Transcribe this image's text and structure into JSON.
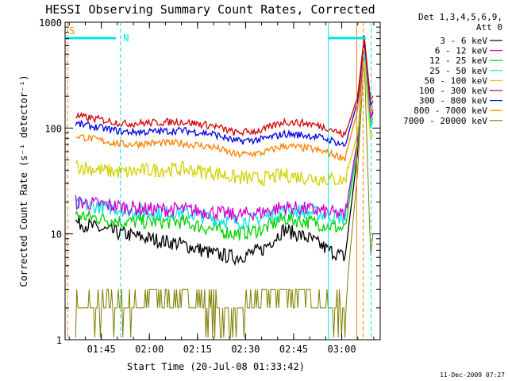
{
  "chart_data": {
    "type": "line",
    "title": "HESSI Observing Summary Count Rates, Corrected",
    "xlabel": "Start Time (20-Jul-08 01:33:42)",
    "ylabel": "Corrected Count Rate (s⁻¹ detector⁻¹)",
    "y_scale": "log",
    "ylim": [
      1,
      1000
    ],
    "xlim": [
      "01:33:42",
      "03:12:00"
    ],
    "x_ticks": [
      "01:45",
      "02:00",
      "02:15",
      "02:30",
      "02:45",
      "03:00"
    ],
    "y_ticks": [
      "1",
      "10",
      "100",
      "1000"
    ],
    "legend_header": [
      "Det 1,3,4,5,6,9,",
      "Att 0"
    ],
    "legend_position": "outside-right",
    "attenuator_markers": {
      "saa_label": "S",
      "night_label": "N"
    },
    "timestamp": "11-Dec-2009 07:27",
    "series": [
      {
        "name": "3 - 6 keV",
        "color": "#000000",
        "x": [
          "01:37",
          "01:45",
          "01:52",
          "02:00",
          "02:10",
          "02:20",
          "02:27",
          "02:35",
          "02:42",
          "02:50",
          "02:56",
          "03:01",
          "03:05",
          "03:07",
          "03:09",
          "03:10"
        ],
        "values": [
          13,
          11,
          10,
          9,
          8,
          6.5,
          6,
          7,
          11,
          9,
          7,
          6,
          60,
          800,
          120,
          150
        ]
      },
      {
        "name": "6 - 12 keV",
        "color": "#d200d2",
        "x": [
          "01:37",
          "01:45",
          "01:52",
          "02:00",
          "02:10",
          "02:20",
          "02:27",
          "02:35",
          "02:42",
          "02:50",
          "02:56",
          "03:01",
          "03:05",
          "03:07",
          "03:09",
          "03:10"
        ],
        "values": [
          20,
          19,
          18,
          17,
          17,
          16,
          15,
          16,
          18,
          17,
          16,
          15,
          80,
          750,
          120,
          160
        ]
      },
      {
        "name": "12 - 25 keV",
        "color": "#00d200",
        "x": [
          "01:37",
          "01:45",
          "01:52",
          "02:00",
          "02:10",
          "02:20",
          "02:27",
          "02:35",
          "02:42",
          "02:50",
          "02:56",
          "03:01",
          "03:05",
          "03:07",
          "03:09",
          "03:10"
        ],
        "values": [
          15,
          14,
          13,
          13,
          13,
          11,
          10,
          11,
          14,
          13,
          12,
          11,
          70,
          650,
          110,
          130
        ]
      },
      {
        "name": "25 - 50 keV",
        "color": "#00e5e5",
        "x": [
          "01:37",
          "01:45",
          "01:52",
          "02:00",
          "02:10",
          "02:20",
          "02:27",
          "02:35",
          "02:42",
          "02:50",
          "02:56",
          "03:01",
          "03:05",
          "03:07",
          "03:09",
          "03:10"
        ],
        "values": [
          19,
          18,
          17,
          16,
          16,
          14,
          13,
          14,
          17,
          16,
          15,
          14,
          75,
          600,
          100,
          120
        ]
      },
      {
        "name": "50 - 100 keV",
        "color": "#d2d200",
        "x": [
          "01:37",
          "01:45",
          "01:52",
          "02:00",
          "02:10",
          "02:20",
          "02:27",
          "02:35",
          "02:42",
          "02:50",
          "02:56",
          "03:01",
          "03:05",
          "03:07",
          "03:09",
          "03:10"
        ],
        "values": [
          44,
          40,
          38,
          40,
          41,
          38,
          34,
          33,
          36,
          34,
          33,
          32,
          90,
          450,
          80,
          90
        ]
      },
      {
        "name": "100 - 300 keV",
        "color": "#d20000",
        "x": [
          "01:37",
          "01:45",
          "01:52",
          "02:00",
          "02:10",
          "02:20",
          "02:27",
          "02:35",
          "02:42",
          "02:50",
          "02:56",
          "03:01",
          "03:05",
          "03:07",
          "03:09",
          "03:10"
        ],
        "values": [
          130,
          120,
          110,
          112,
          115,
          105,
          90,
          95,
          115,
          110,
          100,
          85,
          200,
          750,
          180,
          210
        ]
      },
      {
        "name": "300 - 800 keV",
        "color": "#0000e6",
        "x": [
          "01:37",
          "01:45",
          "01:52",
          "02:00",
          "02:10",
          "02:20",
          "02:27",
          "02:35",
          "02:42",
          "02:50",
          "02:56",
          "03:01",
          "03:05",
          "03:07",
          "03:09",
          "03:10"
        ],
        "values": [
          110,
          100,
          92,
          92,
          95,
          88,
          75,
          78,
          88,
          85,
          78,
          68,
          180,
          700,
          160,
          190
        ]
      },
      {
        "name": "800 - 7000 keV",
        "color": "#ff7f00",
        "x": [
          "01:37",
          "01:45",
          "01:52",
          "02:00",
          "02:10",
          "02:20",
          "02:27",
          "02:35",
          "02:42",
          "02:50",
          "02:56",
          "03:01",
          "03:05",
          "03:07",
          "03:09",
          "03:10"
        ],
        "values": [
          85,
          76,
          70,
          72,
          72,
          66,
          56,
          58,
          68,
          64,
          58,
          52,
          150,
          650,
          140,
          170
        ]
      },
      {
        "name": "7000 - 20000 keV",
        "color": "#7f7f00",
        "x": [
          "01:37",
          "01:45",
          "01:52",
          "02:00",
          "02:10",
          "02:20",
          "02:27",
          "02:35",
          "02:42",
          "02:50",
          "02:56",
          "03:01",
          "03:05",
          "03:07",
          "03:09",
          "03:10"
        ],
        "values": [
          2,
          2,
          2,
          2.5,
          2.5,
          2,
          1.6,
          2.5,
          3,
          2.5,
          2,
          2,
          40,
          500,
          6,
          12
        ]
      }
    ]
  }
}
